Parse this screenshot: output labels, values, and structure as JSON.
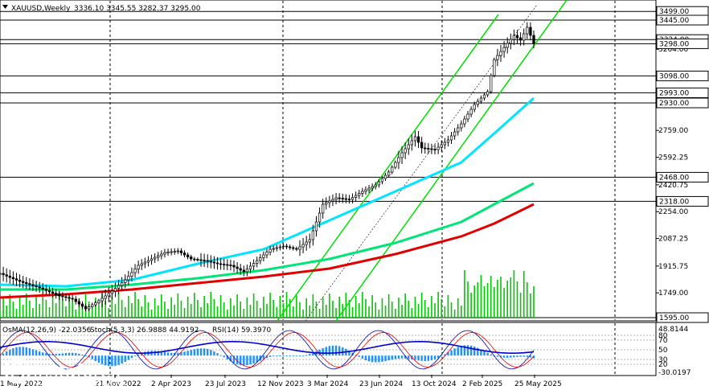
{
  "header": {
    "symbol": "XAUUSD,Weekly",
    "ohlc": "3336.10 3345.55 3282.37 3295.00"
  },
  "osc_header": {
    "osma": "OsMA(12,26,9) -22.0356",
    "stoch": "Stoch(5,3,3) 26.9888 44.9192",
    "rsi": "RSI(14) 59.3970"
  },
  "logo": {
    "name": "instaforex",
    "tagline": "Instant Forex Trading"
  },
  "colors": {
    "candle": "#000000",
    "ema50": "#00e5ff",
    "ema144": "#00e676",
    "ema200": "#e00000",
    "channel": "#00e000",
    "volume": "#00c800",
    "osma": "#1e90ff",
    "stoch_main": "#0000aa",
    "stoch_signal": "#dd0000",
    "rsi": "#0000cc",
    "logo_bg": "#ffffff"
  },
  "chart_data": {
    "type": "candlestick",
    "timeframe": "Weekly",
    "price_axis": [
      "3445.00",
      "3264.00",
      "3098.00",
      "2930.00",
      "2759.00",
      "2592.25",
      "2420.75",
      "2254.00",
      "2087.25",
      "1915.75",
      "1749.00"
    ],
    "level_labels": [
      "3499.00",
      "3445.00",
      "3324.00",
      "3298.00",
      "3098.00",
      "2993.00",
      "2930.00",
      "2468.00",
      "2318.00",
      "1595.00"
    ],
    "x_labels": [
      "1 May 2022",
      "21 Nov 2022",
      "2 Apr 2023",
      "23 Jul 2023",
      "12 Nov 2023",
      "3 Mar 2024",
      "23 Jun 2024",
      "13 Oct 2024",
      "2 Feb 2025",
      "25 May 2025"
    ],
    "ylim": [
      1595,
      3560
    ],
    "oscillator": {
      "axis_labels": [
        "48.8144",
        "80",
        "70",
        "50",
        "30",
        "20",
        "-30.0197"
      ],
      "osma_range": [
        -30.0197,
        48.8144
      ]
    },
    "series": [
      {
        "name": "price",
        "points": [
          [
            0,
            1870
          ],
          [
            6,
            1820
          ],
          [
            12,
            1780
          ],
          [
            18,
            1730
          ],
          [
            22,
            1710
          ],
          [
            26,
            1650
          ],
          [
            30,
            1700
          ],
          [
            34,
            1760
          ],
          [
            38,
            1830
          ],
          [
            42,
            1920
          ],
          [
            46,
            1960
          ],
          [
            50,
            2000
          ],
          [
            54,
            2010
          ],
          [
            58,
            1960
          ],
          [
            62,
            1950
          ],
          [
            66,
            1930
          ],
          [
            70,
            1920
          ],
          [
            74,
            1880
          ],
          [
            78,
            1950
          ],
          [
            82,
            2020
          ],
          [
            86,
            2040
          ],
          [
            90,
            2020
          ],
          [
            94,
            2080
          ],
          [
            98,
            2300
          ],
          [
            102,
            2340
          ],
          [
            106,
            2330
          ],
          [
            110,
            2380
          ],
          [
            114,
            2420
          ],
          [
            118,
            2500
          ],
          [
            122,
            2620
          ],
          [
            126,
            2720
          ],
          [
            128,
            2650
          ],
          [
            132,
            2640
          ],
          [
            136,
            2700
          ],
          [
            140,
            2800
          ],
          [
            144,
            2920
          ],
          [
            148,
            3000
          ],
          [
            150,
            3200
          ],
          [
            152,
            3250
          ],
          [
            154,
            3300
          ],
          [
            156,
            3350
          ],
          [
            158,
            3320
          ],
          [
            160,
            3400
          ],
          [
            162,
            3300
          ]
        ]
      },
      {
        "name": "ema50",
        "points": [
          [
            0,
            1800
          ],
          [
            20,
            1790
          ],
          [
            40,
            1830
          ],
          [
            60,
            1930
          ],
          [
            80,
            2020
          ],
          [
            100,
            2200
          ],
          [
            120,
            2380
          ],
          [
            140,
            2560
          ],
          [
            150,
            2740
          ],
          [
            162,
            2960
          ]
        ]
      },
      {
        "name": "ema144",
        "points": [
          [
            0,
            1770
          ],
          [
            20,
            1770
          ],
          [
            40,
            1800
          ],
          [
            60,
            1840
          ],
          [
            80,
            1890
          ],
          [
            100,
            1960
          ],
          [
            120,
            2060
          ],
          [
            140,
            2190
          ],
          [
            150,
            2300
          ],
          [
            162,
            2430
          ]
        ]
      },
      {
        "name": "ema200",
        "points": [
          [
            0,
            1720
          ],
          [
            20,
            1740
          ],
          [
            40,
            1770
          ],
          [
            60,
            1810
          ],
          [
            80,
            1850
          ],
          [
            100,
            1900
          ],
          [
            120,
            1990
          ],
          [
            140,
            2100
          ],
          [
            150,
            2180
          ],
          [
            162,
            2300
          ]
        ]
      }
    ]
  }
}
